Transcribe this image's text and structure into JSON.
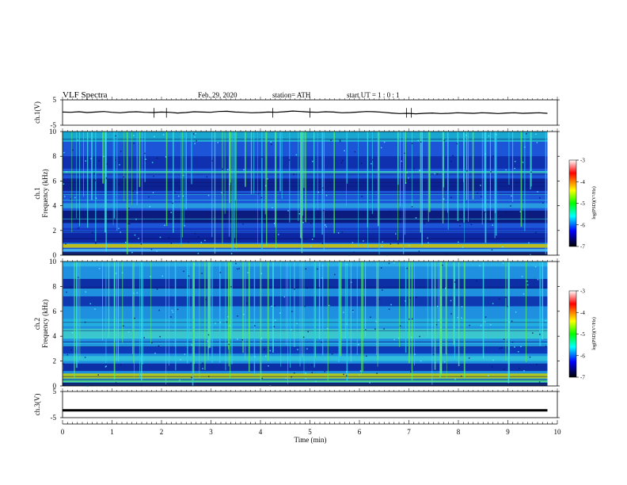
{
  "header": {
    "title": "VLF  Spectra",
    "date": "Feb. 29, 2020",
    "station": "station= ATH",
    "start": "start  UT  =   1 : 0 : 1"
  },
  "colorbar": {
    "label": "log(PSD)(V²/Hz)",
    "ticks": [
      "-3",
      "-4",
      "-5",
      "-6",
      "-7"
    ],
    "colors": [
      "#ffffff",
      "#ff0000",
      "#ffff00",
      "#00ff00",
      "#00ffff",
      "#0000ff",
      "#000000"
    ]
  },
  "chart_data": [
    {
      "type": "line",
      "ylabel": "ch.1(V)",
      "ylim": [
        -5,
        5
      ],
      "yticks": [
        "5",
        "-5"
      ],
      "xlim": [
        0,
        10
      ],
      "x_start": 0,
      "x_end": 9.8,
      "values": [
        0.2,
        0.1,
        0.3,
        0.0,
        0.2,
        0.4,
        0.1,
        -0.1,
        0.2,
        0.3,
        0.1,
        0.0,
        0.2,
        0.1,
        -0.2,
        0.0,
        0.3,
        0.2,
        0.1,
        0.4,
        0.5,
        0.2,
        0.1,
        -0.1,
        0.0,
        0.2,
        0.1,
        0.3,
        0.6,
        0.4,
        0.2,
        0.1,
        0.3,
        0.2,
        -0.1,
        0.0,
        0.2,
        0.4,
        0.3,
        0.1,
        -0.2,
        -0.4,
        -0.3,
        -0.5,
        -0.3,
        -0.2,
        -0.4,
        -0.3,
        -0.1,
        -0.2,
        -0.3,
        -0.1,
        -0.2,
        -0.4,
        -0.2,
        -0.1,
        -0.3,
        -0.2,
        -0.1,
        -0.3
      ],
      "color": "#000000"
    },
    {
      "type": "heatmap",
      "ylabel": "ch.1\nFrequency (kHz)",
      "ylim": [
        0,
        10
      ],
      "yticks": [
        "0",
        "2",
        "4",
        "6",
        "8",
        "10"
      ],
      "xlim": [
        0,
        10
      ],
      "x_start": 0,
      "x_end": 9.8,
      "colorbar": "log(PSD)(V²/Hz)",
      "clim": [
        -7,
        -3
      ]
    },
    {
      "type": "heatmap",
      "ylabel": "ch.2\nFrequency (kHz)",
      "ylim": [
        0,
        10
      ],
      "yticks": [
        "0",
        "2",
        "4",
        "6",
        "8",
        "10"
      ],
      "xlim": [
        0,
        10
      ],
      "x_start": 0,
      "x_end": 9.8,
      "colorbar": "log(PSD)(V²/Hz)",
      "clim": [
        -7,
        -3
      ]
    },
    {
      "type": "line",
      "ylabel": "ch.3(V)",
      "ylim": [
        -5,
        5
      ],
      "yticks": [
        "5",
        "-5"
      ],
      "xlim": [
        0,
        10
      ],
      "x_start": 0,
      "x_end": 9.8,
      "values": [
        -2.2,
        -2.2
      ],
      "color": "#000000"
    }
  ],
  "xaxis": {
    "label": "Time  (min)",
    "ticks": [
      "0",
      "1",
      "2",
      "3",
      "4",
      "5",
      "6",
      "7",
      "8",
      "9",
      "10"
    ]
  }
}
